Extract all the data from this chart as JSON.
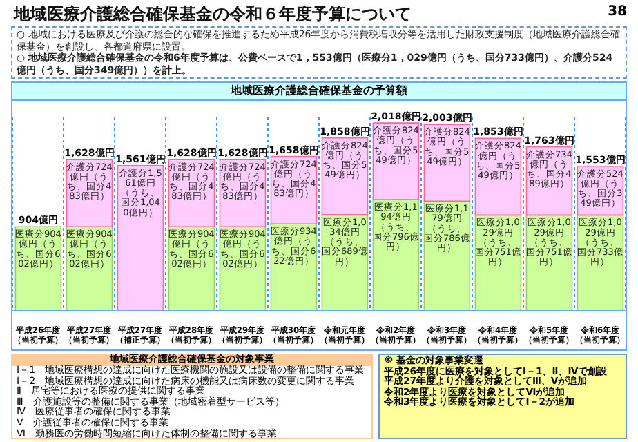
{
  "chart_data": {
    "type": "bar",
    "stacked": true,
    "title": "地域医療介護総合確保基金の令和６年度予算について",
    "categories": [
      "平成26年度（当初予算）",
      "平成27年度（当初予算）",
      "平成27年度（補正予算）",
      "平成28年度（当初予算）",
      "平成29年度（当初予算）",
      "平成30年度（当初予算）",
      "令和元年度（当初予算）",
      "令和2年度（当初予算）",
      "令和3年度（当初予算）",
      "令和4年度（当初予算）",
      "令和5年度（当初予算）",
      "令和6年度（当初予算）"
    ],
    "series": [
      {
        "color": "#ccff99",
        "values": [
          904,
          904,
          null,
          904,
          904,
          934,
          1034,
          1194,
          1179,
          1029,
          1029,
          1029
        ],
        "value_labels": [
          "医療分904億円（うち、国分602億円）",
          "医療分904億円（うち、国分602億円）",
          null,
          "医療分904億円（うち、国分602億円）",
          "医療分904億円（うち、国分602億円）",
          "医療分934億円（うち、国分622億円）",
          "医療分1,034億円（うち、国分689億円）",
          "医療分1,194億円（うち、国分796億円）",
          "医療分1,179億円（うち、国分786億円）",
          "医療分1,029億円（うち、国分751億円）",
          "医療分1,029億円（うち、国分751億円）",
          "医療分1,029億円（うち、国分733億円）"
        ]
      },
      {
        "color": "#ffccff",
        "values": [
          null,
          724,
          1561,
          724,
          724,
          724,
          824,
          824,
          824,
          824,
          734,
          524
        ],
        "value_labels": [
          null,
          "介護分724億円（うち、国分483億円）",
          "介護分1,561億円（うち、国分1,040億円）",
          "介護分724億円（うち、国分483億円）",
          "介護分724億円（うち、国分483億円）",
          "介護分724億円（うち、国分483億円）",
          "介護分824億円（うち、国分549億円）",
          "介護分824億円（うち、国分549億円）",
          "介護分824億円（うち、国分549億円）",
          "介護分824億円（うち、国分549億円）",
          "介護分734億円（うち、国分489億円）",
          "介護分524億円（うち、国分349億円）"
        ]
      }
    ],
    "totals": [
      "904億円",
      "1,628億円",
      "1,561億円",
      "1,628億円",
      "1,628億円",
      "1,658億円",
      "1,858億円",
      "2,018億円",
      "2,003億円",
      "1,853億円",
      "1,763億円",
      "1,553億円"
    ],
    "grid": "x",
    "legend": false,
    "annotations": [
      "○ 地域における医療及び介護の総合的な確保を推進するため平成26年度から消費税増収分等を活用した財政支援制度（地域医療介護総合確保基金）を創設し、各都道府県に設置。",
      "○ 地域医療介護総合確保基金の令和6年度予算は、公費ベースで1，553億円（医療分1，029億円（うち、国分733億円）、介護分524億円（うち、国分349億円））を計上。",
      "地域医療介護総合確保基金の予算額",
      "地域医療介護総合確保基金の対象事業",
      "Ⅰ－1　地域医療構想の達成に向けた医療機関の施設又は設備の整備に関する事業",
      "Ⅰ－2　地域医療構想の達成に向けた病床の機能又は病床数の変更に関する事業",
      "Ⅱ　居宅等における医療の提供に関する事業",
      "Ⅲ　介護施設等の整備に関する事業（地域密着型サービス等）",
      "Ⅳ　医療従事者の確保に関する事業",
      "Ⅴ　介護従事者の確保に関する事業",
      "Ⅵ　勤務医の労働時間短縮に向けた体制の整備に関する事業",
      "※ 基金の対象事業変遷",
      "平成26年度に医療を対象としてⅠ－1、Ⅱ、Ⅳで創設",
      "平成27年度より介護を対象としてⅢ、Ⅴが追加",
      "令和2年度より医療を対象としてⅥが追加",
      "令和3年度より医療を対象としてⅠ－2が追加",
      "38"
    ]
  }
}
